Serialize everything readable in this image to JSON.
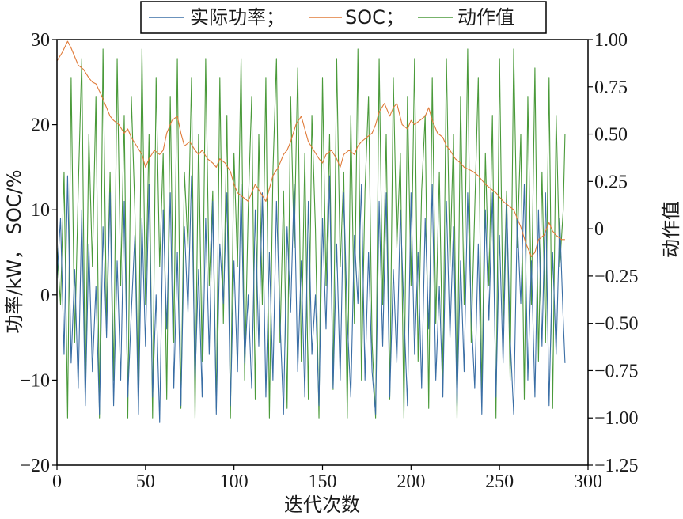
{
  "chart_data": {
    "type": "line",
    "xlabel": "迭代次数",
    "ylabel_left": "功率/kW，  SOC/%",
    "ylabel_right": "动作值",
    "xlim": [
      0,
      300
    ],
    "ylim_left": [
      -20,
      30
    ],
    "ylim_right": [
      -1.25,
      1.0
    ],
    "xticks": [
      "0",
      "50",
      "100",
      "150",
      "200",
      "250",
      "300"
    ],
    "yticks_left": [
      "−20",
      "−10",
      "0",
      "10",
      "20",
      "30"
    ],
    "yticks_right": [
      "−1.25",
      "−1.00",
      "−0.75",
      "−0.50",
      "−0.25",
      "0",
      "0.25",
      "0.50",
      "0.75",
      "1.00"
    ],
    "grid": false,
    "legend_position": "top-center",
    "colors": {
      "actual_power": "#3a6ea5",
      "soc": "#e07b39",
      "action": "#4a9a3a"
    },
    "series": [
      {
        "name": "实际功率；",
        "axis": "left",
        "x": [
          0,
          2,
          4,
          6,
          8,
          10,
          12,
          14,
          16,
          18,
          20,
          22,
          24,
          26,
          28,
          30,
          32,
          34,
          36,
          38,
          40,
          42,
          44,
          46,
          48,
          50,
          52,
          54,
          56,
          58,
          60,
          62,
          64,
          66,
          68,
          70,
          72,
          74,
          76,
          78,
          80,
          82,
          84,
          86,
          88,
          90,
          92,
          94,
          96,
          98,
          100,
          102,
          104,
          106,
          108,
          110,
          112,
          114,
          116,
          118,
          120,
          122,
          124,
          126,
          128,
          130,
          132,
          134,
          136,
          138,
          140,
          142,
          144,
          146,
          148,
          150,
          152,
          154,
          156,
          158,
          160,
          162,
          164,
          166,
          168,
          170,
          172,
          174,
          176,
          178,
          180,
          182,
          184,
          186,
          188,
          190,
          192,
          194,
          196,
          198,
          200,
          202,
          204,
          206,
          208,
          210,
          212,
          214,
          216,
          218,
          220,
          222,
          224,
          226,
          228,
          230,
          232,
          234,
          236,
          238,
          240,
          242,
          244,
          246,
          248,
          250,
          252,
          254,
          256,
          258,
          260,
          262,
          264,
          266,
          268,
          270,
          272,
          274,
          276,
          278,
          280,
          282,
          284,
          286,
          287
        ],
        "values": [
          2,
          9,
          -7,
          14,
          -8,
          3,
          -11,
          10,
          -13,
          6,
          -9,
          1,
          -14,
          8,
          -5,
          12,
          -13,
          4,
          -10,
          11,
          -12,
          -2,
          7,
          -14,
          9,
          -6,
          13,
          -12,
          0,
          -15,
          10,
          -4,
          12,
          -11,
          5,
          -13,
          8,
          -2,
          14,
          -10,
          3,
          -12,
          9,
          -7,
          11,
          -14,
          6,
          -1,
          12,
          -13,
          4,
          -9,
          13,
          -8,
          0,
          -11,
          10,
          -6,
          12,
          -12,
          5,
          -10,
          11,
          -3,
          -14,
          8,
          -2,
          13,
          -9,
          4,
          -12,
          11,
          -7,
          0,
          -13,
          9,
          -4,
          14,
          -11,
          6,
          -10,
          12,
          -3,
          -12,
          7,
          -1,
          13,
          -10,
          5,
          -9,
          -14,
          11,
          -6,
          12,
          -12,
          3,
          -8,
          10,
          -2,
          -13,
          12,
          -7,
          5,
          -11,
          9,
          -4,
          13,
          -10,
          1,
          -12,
          11,
          -5,
          8,
          -13,
          4,
          -9,
          12,
          -2,
          -11,
          6,
          -14,
          10,
          -3,
          12,
          -12,
          7,
          -8,
          11,
          -5,
          -14,
          9,
          -1,
          13,
          -10,
          4,
          -12,
          10,
          -6,
          12,
          -13,
          5,
          -7,
          9,
          -3,
          -8
        ]
      },
      {
        "name": "SOC；",
        "axis": "left",
        "x": [
          0,
          3,
          6,
          8,
          10,
          12,
          15,
          18,
          20,
          22,
          25,
          28,
          30,
          32,
          35,
          38,
          40,
          42,
          45,
          48,
          50,
          52,
          55,
          58,
          60,
          62,
          65,
          68,
          70,
          72,
          75,
          78,
          80,
          82,
          85,
          88,
          90,
          92,
          95,
          98,
          100,
          102,
          105,
          108,
          110,
          112,
          115,
          118,
          120,
          122,
          125,
          128,
          130,
          132,
          135,
          138,
          140,
          142,
          145,
          148,
          150,
          152,
          155,
          158,
          160,
          162,
          165,
          168,
          170,
          172,
          175,
          178,
          180,
          182,
          185,
          188,
          190,
          192,
          195,
          198,
          200,
          202,
          205,
          208,
          210,
          212,
          215,
          218,
          220,
          222,
          225,
          228,
          230,
          232,
          235,
          238,
          240,
          242,
          245,
          248,
          250,
          252,
          255,
          258,
          260,
          262,
          265,
          268,
          270,
          272,
          275,
          278,
          280,
          282,
          285,
          287
        ],
        "values": [
          27.5,
          28.5,
          29.8,
          29.0,
          28.0,
          27.0,
          26.5,
          25.5,
          25.0,
          24.8,
          23.5,
          22.0,
          21.0,
          20.5,
          20.0,
          19.0,
          19.5,
          18.5,
          17.5,
          16.5,
          15.0,
          16.0,
          17.0,
          16.5,
          17.0,
          19.0,
          20.5,
          21.0,
          19.0,
          17.5,
          18.0,
          17.0,
          16.5,
          17.0,
          16.0,
          15.5,
          15.0,
          16.0,
          15.5,
          14.5,
          13.0,
          12.0,
          11.5,
          11.0,
          12.0,
          13.0,
          12.0,
          11.0,
          12.5,
          14.0,
          15.0,
          16.5,
          17.0,
          18.0,
          20.0,
          21.0,
          19.5,
          18.0,
          17.0,
          16.0,
          15.5,
          16.5,
          17.0,
          16.0,
          15.0,
          16.5,
          17.0,
          16.5,
          17.5,
          18.0,
          18.5,
          19.0,
          20.0,
          21.5,
          22.5,
          21.0,
          22.0,
          22.5,
          20.0,
          19.5,
          20.5,
          20.0,
          20.5,
          21.0,
          22.0,
          20.5,
          19.0,
          18.5,
          17.5,
          17.0,
          16.0,
          15.5,
          15.0,
          14.8,
          14.5,
          14.0,
          13.5,
          13.0,
          12.5,
          12.0,
          11.5,
          11.0,
          10.5,
          10.0,
          9.0,
          8.0,
          6.0,
          4.5,
          5.0,
          6.5,
          7.0,
          8.5,
          7.5,
          7.0,
          6.5,
          6.5
        ]
      },
      {
        "name": "动作值",
        "axis": "right",
        "x": [
          0,
          2,
          4,
          6,
          8,
          10,
          12,
          14,
          16,
          18,
          20,
          22,
          24,
          26,
          28,
          30,
          32,
          34,
          36,
          38,
          40,
          42,
          44,
          46,
          48,
          50,
          52,
          54,
          56,
          58,
          60,
          62,
          64,
          66,
          68,
          70,
          72,
          74,
          76,
          78,
          80,
          82,
          84,
          86,
          88,
          90,
          92,
          94,
          96,
          98,
          100,
          102,
          104,
          106,
          108,
          110,
          112,
          114,
          116,
          118,
          120,
          122,
          124,
          126,
          128,
          130,
          132,
          134,
          136,
          138,
          140,
          142,
          144,
          146,
          148,
          150,
          152,
          154,
          156,
          158,
          160,
          162,
          164,
          166,
          168,
          170,
          172,
          174,
          176,
          178,
          180,
          182,
          184,
          186,
          188,
          190,
          192,
          194,
          196,
          198,
          200,
          202,
          204,
          206,
          208,
          210,
          212,
          214,
          216,
          218,
          220,
          222,
          224,
          226,
          228,
          230,
          232,
          234,
          236,
          238,
          240,
          242,
          244,
          246,
          248,
          250,
          252,
          254,
          256,
          258,
          260,
          262,
          264,
          266,
          268,
          270,
          272,
          274,
          276,
          278,
          280,
          282,
          284,
          286,
          287
        ],
        "values": [
          -0.1,
          -0.4,
          0.3,
          -1.0,
          0.8,
          -0.6,
          0.2,
          0.9,
          -0.9,
          0.5,
          -0.2,
          0.7,
          -1.0,
          0.95,
          -0.5,
          0.3,
          -0.8,
          0.9,
          -0.3,
          0.6,
          -1.0,
          0.7,
          0.1,
          -0.9,
          0.95,
          -0.4,
          0.5,
          -1.0,
          0.8,
          -0.2,
          0.4,
          -0.9,
          0.7,
          -0.6,
          0.9,
          -0.95,
          0.3,
          -0.1,
          0.8,
          -1.0,
          0.5,
          -0.7,
          0.9,
          -0.3,
          0.2,
          -0.95,
          0.8,
          -0.5,
          0.6,
          -1.0,
          0.4,
          -0.2,
          0.9,
          -0.8,
          0.1,
          0.7,
          -0.9,
          0.5,
          -0.4,
          0.8,
          -1.0,
          0.3,
          0.9,
          -0.6,
          0.2,
          -0.95,
          0.7,
          -0.1,
          0.85,
          -0.7,
          0.4,
          -0.9,
          0.6,
          0.0,
          -1.0,
          0.8,
          -0.3,
          0.5,
          -0.85,
          0.9,
          -0.2,
          0.3,
          -1.0,
          0.6,
          -0.5,
          0.95,
          -0.8,
          0.2,
          0.7,
          -0.6,
          -1.0,
          0.9,
          -0.4,
          0.5,
          -0.9,
          0.8,
          -0.1,
          0.4,
          -1.0,
          0.7,
          -0.3,
          0.9,
          -0.7,
          0.2,
          0.6,
          -0.95,
          0.8,
          -0.5,
          0.3,
          -0.8,
          0.9,
          -0.2,
          0.5,
          -1.0,
          0.7,
          -0.4,
          0.95,
          -0.6,
          0.1,
          0.8,
          -0.9,
          0.4,
          -0.3,
          0.6,
          -1.0,
          0.9,
          -0.5,
          0.2,
          -0.8,
          0.95,
          -0.1,
          0.5,
          -0.9,
          0.7,
          -0.4,
          0.85,
          -0.7,
          0.3,
          -0.6,
          0.8,
          -0.95,
          0.6,
          -0.2,
          0.1,
          0.5
        ]
      }
    ]
  }
}
